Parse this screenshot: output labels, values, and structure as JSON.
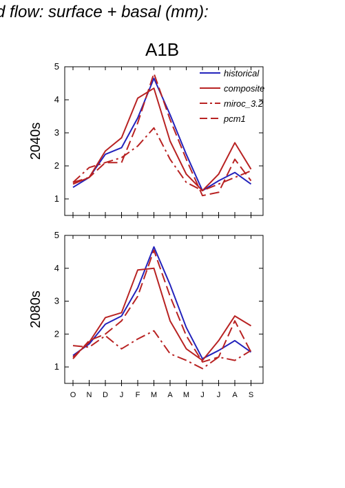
{
  "figure": {
    "title": "d flow: surface + basal (mm):",
    "scenario_label": "A1B"
  },
  "chart_data": [
    {
      "type": "line",
      "panel_label": "2040s",
      "x": [
        "O",
        "N",
        "D",
        "J",
        "F",
        "M",
        "A",
        "M",
        "J",
        "J",
        "A",
        "S"
      ],
      "ylim": [
        0.5,
        5.0
      ],
      "yticks": [
        1,
        2,
        3,
        4,
        5
      ],
      "legend_position": "top-right",
      "series": [
        {
          "name": "historical",
          "color": "#2222bb",
          "dash": "solid",
          "values": [
            1.35,
            1.65,
            2.35,
            2.55,
            3.45,
            4.65,
            3.55,
            2.35,
            1.25,
            1.55,
            1.8,
            1.45
          ]
        },
        {
          "name": "composite",
          "color": "#b82222",
          "dash": "solid",
          "values": [
            1.45,
            1.65,
            2.45,
            2.85,
            4.05,
            4.35,
            2.75,
            1.75,
            1.25,
            1.75,
            2.7,
            1.9
          ]
        },
        {
          "name": "miroc_3.2",
          "color": "#b82222",
          "dash": "dashdot",
          "values": [
            1.5,
            1.95,
            2.1,
            2.25,
            2.6,
            3.15,
            2.2,
            1.5,
            1.25,
            1.45,
            1.65,
            1.85
          ]
        },
        {
          "name": "pcm1",
          "color": "#b82222",
          "dash": "dash",
          "values": [
            1.5,
            1.65,
            2.1,
            2.1,
            3.3,
            4.8,
            3.4,
            2.2,
            1.1,
            1.2,
            2.2,
            1.55
          ]
        }
      ]
    },
    {
      "type": "line",
      "panel_label": "2080s",
      "x": [
        "O",
        "N",
        "D",
        "J",
        "F",
        "M",
        "A",
        "M",
        "J",
        "J",
        "A",
        "S"
      ],
      "ylim": [
        0.5,
        5.0
      ],
      "yticks": [
        1,
        2,
        3,
        4,
        5
      ],
      "series": [
        {
          "name": "historical",
          "color": "#2222bb",
          "dash": "solid",
          "values": [
            1.35,
            1.7,
            2.3,
            2.55,
            3.4,
            4.65,
            3.5,
            2.2,
            1.25,
            1.5,
            1.8,
            1.45
          ]
        },
        {
          "name": "composite",
          "color": "#b82222",
          "dash": "solid",
          "values": [
            1.3,
            1.75,
            2.5,
            2.65,
            3.95,
            4.0,
            2.4,
            1.55,
            1.2,
            1.8,
            2.55,
            2.25
          ]
        },
        {
          "name": "miroc_3.2",
          "color": "#b82222",
          "dash": "dashdot",
          "values": [
            1.65,
            1.6,
            1.95,
            1.55,
            1.85,
            2.1,
            1.4,
            1.2,
            0.95,
            1.3,
            1.2,
            1.5
          ]
        },
        {
          "name": "pcm1",
          "color": "#b82222",
          "dash": "dash",
          "values": [
            1.25,
            1.8,
            2.0,
            2.4,
            3.15,
            4.55,
            3.15,
            1.95,
            1.15,
            1.3,
            2.4,
            1.45
          ]
        }
      ]
    }
  ]
}
